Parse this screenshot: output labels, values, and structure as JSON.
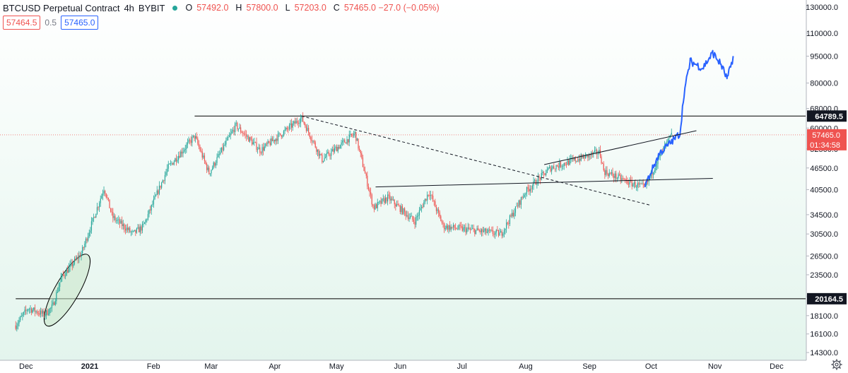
{
  "legend": {
    "symbol": "BTCUSD Perpetual Contract",
    "timeframe": "4h",
    "exchange": "BYBIT",
    "open_label": "O",
    "open": "57492.0",
    "high_label": "H",
    "high": "57800.0",
    "low_label": "L",
    "low": "57203.0",
    "close_label": "C",
    "close": "57465.0 −27.0 (−0.05%)"
  },
  "quote": {
    "bid": "57464.5",
    "spread": "0.5",
    "ask": "57465.0"
  },
  "colors": {
    "up": "#26a69a",
    "down": "#ef5350",
    "projection": "#2962ff",
    "level_line": "#000000",
    "current_price": "#ef5350",
    "ellipse_fill": "#c8e6c9"
  },
  "icons": {
    "settings": "gear-icon",
    "status": "market-open-dot"
  },
  "chart_data": {
    "type": "candlestick",
    "y_scale": "log",
    "ylim": [
      14300,
      130000
    ],
    "x_tick_labels": [
      "Dec",
      "2021",
      "Feb",
      "Mar",
      "Apr",
      "May",
      "Jun",
      "Jul",
      "Aug",
      "Sep",
      "Oct",
      "Nov",
      "Dec"
    ],
    "y_tick_labels": [
      "130000.0",
      "110000.0",
      "95000.0",
      "80000.0",
      "68000.0",
      "60000.0",
      "52500.0",
      "46500.0",
      "40500.0",
      "34500.0",
      "30500.0",
      "26500.0",
      "23500.0",
      "20500.0",
      "18100.0",
      "16100.0",
      "14300.0"
    ],
    "y_tick_values": [
      130000,
      110000,
      95000,
      80000,
      68000,
      60000,
      52500,
      46500,
      40500,
      34500,
      30500,
      26500,
      23500,
      20500,
      18100,
      16100,
      14300
    ],
    "price_path": [
      {
        "date": "2020-11-26",
        "price": 17000
      },
      {
        "date": "2020-12-02",
        "price": 19000
      },
      {
        "date": "2020-12-10",
        "price": 18200
      },
      {
        "date": "2020-12-14",
        "price": 19200
      },
      {
        "date": "2020-12-18",
        "price": 23000
      },
      {
        "date": "2020-12-28",
        "price": 27000
      },
      {
        "date": "2021-01-08",
        "price": 41000
      },
      {
        "date": "2021-01-12",
        "price": 34000
      },
      {
        "date": "2021-01-22",
        "price": 30500
      },
      {
        "date": "2021-01-27",
        "price": 32000
      },
      {
        "date": "2021-02-08",
        "price": 46500
      },
      {
        "date": "2021-02-21",
        "price": 57000
      },
      {
        "date": "2021-02-28",
        "price": 45000
      },
      {
        "date": "2021-03-13",
        "price": 61000
      },
      {
        "date": "2021-03-25",
        "price": 52000
      },
      {
        "date": "2021-04-14",
        "price": 64000
      },
      {
        "date": "2021-04-24",
        "price": 49000
      },
      {
        "date": "2021-05-10",
        "price": 58000
      },
      {
        "date": "2021-05-19",
        "price": 36000
      },
      {
        "date": "2021-05-26",
        "price": 38500
      },
      {
        "date": "2021-06-08",
        "price": 33000
      },
      {
        "date": "2021-06-15",
        "price": 40000
      },
      {
        "date": "2021-06-22",
        "price": 32000
      },
      {
        "date": "2021-07-20",
        "price": 30500
      },
      {
        "date": "2021-08-01",
        "price": 40000
      },
      {
        "date": "2021-08-13",
        "price": 46500
      },
      {
        "date": "2021-09-06",
        "price": 51500
      },
      {
        "date": "2021-09-08",
        "price": 45500
      },
      {
        "date": "2021-09-22",
        "price": 42000
      },
      {
        "date": "2021-09-28",
        "price": 41000
      },
      {
        "date": "2021-10-05",
        "price": 50000
      },
      {
        "date": "2021-10-11",
        "price": 57465
      }
    ],
    "projection_path": [
      {
        "date": "2021-09-28",
        "price": 41500
      },
      {
        "date": "2021-10-05",
        "price": 51000
      },
      {
        "date": "2021-10-11",
        "price": 55000
      },
      {
        "date": "2021-10-15",
        "price": 58000
      },
      {
        "date": "2021-10-17",
        "price": 75000
      },
      {
        "date": "2021-10-20",
        "price": 92000
      },
      {
        "date": "2021-10-26",
        "price": 88000
      },
      {
        "date": "2021-10-31",
        "price": 97000
      },
      {
        "date": "2021-11-04",
        "price": 90000
      },
      {
        "date": "2021-11-07",
        "price": 82000
      },
      {
        "date": "2021-11-10",
        "price": 95000
      }
    ],
    "horizontal_levels": [
      {
        "value": 64789.5,
        "label": "64789.5",
        "from_date": "2021-02-21"
      },
      {
        "value": 20164.5,
        "label": "20164.5",
        "from_date": "2020-11-26"
      }
    ],
    "current_price": {
      "value": 57465,
      "label": "57465.0",
      "countdown": "01:34:58"
    },
    "trendlines": [
      {
        "style": "dashed",
        "from": {
          "date": "2021-04-14",
          "price": 64789.5
        },
        "to": {
          "date": "2021-10-01",
          "price": 36600
        }
      },
      {
        "style": "solid",
        "from": {
          "date": "2021-05-20",
          "price": 41200
        },
        "to": {
          "date": "2021-10-31",
          "price": 43500
        }
      },
      {
        "style": "solid",
        "from": {
          "date": "2021-08-10",
          "price": 47500
        },
        "to": {
          "date": "2021-10-23",
          "price": 59000
        }
      }
    ],
    "highlight_ellipse": {
      "center_date": "2020-12-21",
      "center_price": 21300
    }
  }
}
